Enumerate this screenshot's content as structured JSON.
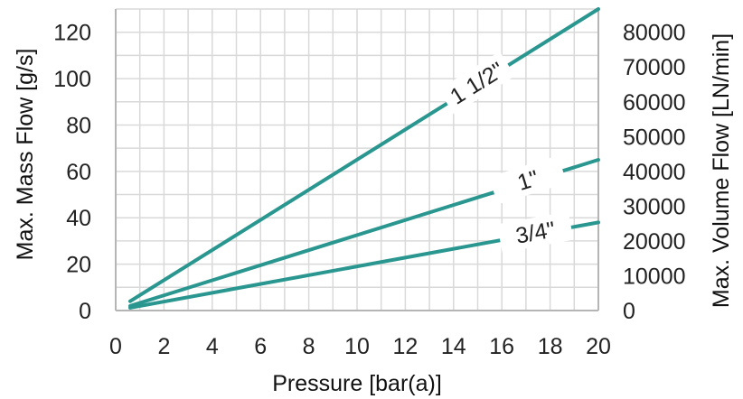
{
  "chart_data": {
    "type": "line",
    "xlabel": "Pressure [bar(a)]",
    "ylabel": "Max. Mass Flow [g/s]",
    "y2label": "Max. Volume Flow [LN/min]",
    "xlim": [
      0,
      20
    ],
    "ylim": [
      0,
      130
    ],
    "y2lim": [
      0,
      86667
    ],
    "xticks": [
      0,
      2,
      4,
      6,
      8,
      10,
      12,
      14,
      16,
      18,
      20
    ],
    "yticks": [
      0,
      20,
      40,
      60,
      80,
      100,
      120
    ],
    "y2ticks": [
      0,
      10000,
      20000,
      30000,
      40000,
      50000,
      60000,
      70000,
      80000
    ],
    "grid": true,
    "line_color": "#2a9690",
    "series": [
      {
        "name": "1 1/2\"",
        "x": [
          0.6,
          20
        ],
        "values": [
          4,
          130
        ]
      },
      {
        "name": "1\"",
        "x": [
          0.6,
          20
        ],
        "values": [
          2,
          65
        ]
      },
      {
        "name": "3/4\"",
        "x": [
          0.6,
          20
        ],
        "values": [
          1.2,
          38
        ]
      }
    ]
  }
}
